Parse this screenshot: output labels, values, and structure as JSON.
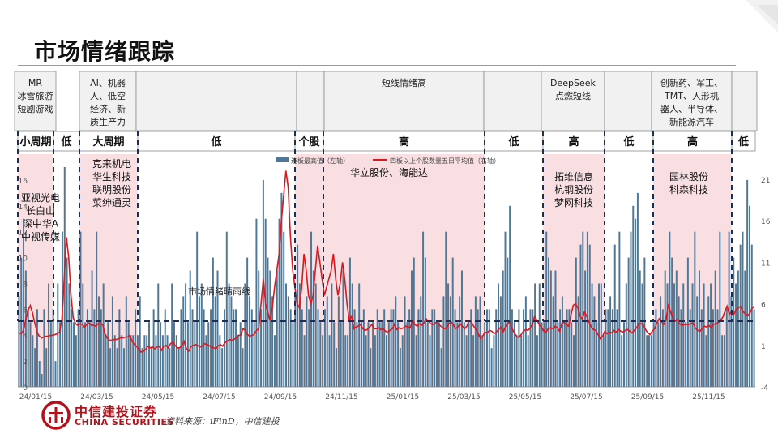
{
  "page": {
    "title": "市场情绪跟踪",
    "brand_cn": "中信建投证券",
    "brand_en": "CHINA SECURITIES",
    "source": "资料来源：iFinD，中信建投"
  },
  "colors": {
    "bar": "#4f7896",
    "line": "#e0161f",
    "pink": "#f9dfe2",
    "dashed": "#1c2e57",
    "box_fill": "#f1f1f1",
    "brand": "#b3121c"
  },
  "themes": [
    {
      "text": "MR\n冰雪旅游\n短剧游戏"
    },
    {
      "text": "AI、机器\n人、低空\n经济、新\n质生产力"
    },
    {
      "text": ""
    },
    {
      "text": ""
    },
    {
      "text": "短线情绪高"
    },
    {
      "text": ""
    },
    {
      "text": "DeepSeek\n点燃短线"
    },
    {
      "text": ""
    },
    {
      "text": "创新药、军工、\nTMT、人形机\n器人、半导体、\n新能源汽车"
    },
    {
      "text": ""
    }
  ],
  "phases": [
    {
      "label": "小周期",
      "sentiment": "high",
      "stocks": "亚视光电\n长白山\n深中华A\n中视传媒"
    },
    {
      "label": "低",
      "sentiment": "low",
      "stocks": ""
    },
    {
      "label": "大周期",
      "sentiment": "high",
      "stocks": "克来机电\n华生科技\n联明股份\n菜绅通灵"
    },
    {
      "label": "低",
      "sentiment": "low",
      "stocks": ""
    },
    {
      "label": "个股",
      "sentiment": "high",
      "stocks": ""
    },
    {
      "label": "高",
      "sentiment": "high",
      "stocks": "华立股份、海能达"
    },
    {
      "label": "低",
      "sentiment": "low",
      "stocks": ""
    },
    {
      "label": "高",
      "sentiment": "high",
      "stocks": "拓维信息\n杭钢股份\n梦网科技"
    },
    {
      "label": "低",
      "sentiment": "low",
      "stocks": ""
    },
    {
      "label": "高",
      "sentiment": "high",
      "stocks": "园林股份\n科森科技"
    },
    {
      "label": "低",
      "sentiment": "low",
      "stocks": ""
    }
  ],
  "chart_data": {
    "type": "bar",
    "x_ticks": [
      "24/01/15",
      "24/03/15",
      "24/05/15",
      "24/07/15",
      "24/09/15",
      "24/11/15",
      "25/01/15",
      "25/03/15",
      "25/05/15",
      "25/07/15",
      "25/09/15",
      "25/11/15"
    ],
    "left_axis": {
      "ticks": [
        "0",
        "2",
        "4",
        "6",
        "8",
        "10",
        "12",
        "14",
        "16"
      ],
      "range": [
        0,
        18
      ]
    },
    "right_axis": {
      "ticks": [
        "-4",
        "1",
        "6",
        "11",
        "16",
        "21"
      ],
      "range": [
        -4,
        24
      ]
    },
    "series": [
      {
        "name": "连板最高值（左轴）",
        "type": "bar",
        "axis": "left",
        "values": [
          7,
          10,
          13,
          9,
          6,
          5,
          4,
          3,
          6,
          2,
          1,
          6,
          3,
          8,
          5,
          6,
          2,
          8,
          5,
          12,
          17,
          10,
          8,
          6,
          5,
          4,
          6,
          12,
          8,
          5,
          6,
          5,
          9,
          6,
          12,
          7,
          6,
          8,
          4,
          5,
          3,
          7,
          4,
          3,
          6,
          4,
          3,
          7,
          5,
          4,
          4,
          6,
          4,
          7,
          3,
          4,
          4,
          5,
          3,
          6,
          4,
          8,
          5,
          4,
          6,
          4,
          3,
          8,
          5,
          4,
          3,
          6,
          7,
          8,
          5,
          9,
          6,
          5,
          12,
          7,
          8,
          6,
          4,
          5,
          6,
          10,
          7,
          9,
          4,
          3,
          6,
          12,
          8,
          7,
          6,
          6,
          4,
          5,
          3,
          8,
          10,
          7,
          6,
          5,
          13,
          9,
          6,
          16,
          13,
          10,
          9,
          7,
          4,
          9,
          13,
          15,
          12,
          8,
          7,
          6,
          5,
          7,
          11,
          8,
          6,
          4,
          7,
          6,
          12,
          9,
          8,
          6,
          5,
          4,
          6,
          7,
          4,
          8,
          5,
          3,
          7,
          5,
          9,
          4,
          4,
          10,
          8,
          6,
          5,
          8,
          5,
          6,
          4,
          5,
          3,
          5,
          4,
          6,
          5,
          5,
          6,
          4,
          5,
          6,
          6,
          7,
          5,
          3,
          4,
          7,
          5,
          6,
          9,
          10,
          4,
          6,
          7,
          12,
          10,
          5,
          4,
          6,
          6,
          5,
          5,
          3,
          7,
          12,
          8,
          7,
          10,
          6,
          5,
          7,
          9,
          5,
          4,
          5,
          6,
          4,
          7,
          6,
          7,
          4,
          5,
          6,
          6,
          3,
          4,
          6,
          8,
          7,
          9,
          12,
          10,
          14,
          6,
          5,
          4,
          6,
          4,
          6,
          7,
          4,
          6,
          6,
          8,
          4,
          8,
          5,
          5,
          12,
          10,
          9,
          7,
          9,
          5,
          6,
          7,
          5,
          6,
          6,
          5,
          4,
          10,
          7,
          11,
          12,
          9,
          12,
          11,
          8,
          7,
          5,
          8,
          8,
          4,
          6,
          6,
          7,
          6,
          11,
          6,
          12,
          4,
          5,
          8,
          10,
          12,
          14,
          13,
          15,
          9,
          8,
          10,
          4,
          4,
          4,
          5,
          6,
          5,
          7,
          6,
          9,
          8,
          12,
          10,
          8,
          9,
          7,
          6,
          8,
          5,
          10,
          6,
          8,
          12,
          7,
          9,
          6,
          8,
          4,
          7,
          8,
          6,
          9,
          6,
          12,
          4,
          4,
          6,
          12,
          7,
          10,
          8,
          9,
          11,
          12,
          9,
          16,
          14,
          11,
          6
        ]
      },
      {
        "name": "四板以上个股数量五日平均值（右轴）",
        "type": "line",
        "axis": "right",
        "values": [
          2.5,
          2.4,
          2.8,
          4.1,
          5.2,
          5.8,
          4.9,
          3.7,
          2.6,
          2.1,
          1.9,
          2.0,
          2.1,
          2.1,
          2.2,
          2.2,
          2.3,
          2.4,
          2.6,
          4.2,
          9.0,
          14.0,
          11.5,
          7.0,
          4.3,
          3.6,
          3.4,
          3.6,
          3.5,
          3.2,
          3.5,
          3.7,
          3.4,
          3.4,
          3.3,
          3.6,
          3.6,
          3.5,
          2.4,
          1.9,
          1.6,
          1.6,
          1.7,
          1.7,
          1.8,
          1.9,
          1.9,
          2.0,
          2.0,
          2.2,
          1.5,
          1.1,
          0.9,
          0.5,
          0.2,
          0.3,
          0.5,
          0.9,
          0.7,
          0.8,
          0.6,
          0.8,
          0.9,
          0.4,
          0.9,
          1.0,
          0.7,
          1.2,
          1.4,
          1.0,
          0.7,
          0.7,
          1.0,
          1.5,
          0.6,
          0.3,
          0.8,
          1.0,
          1.1,
          1.0,
          0.8,
          0.9,
          1.2,
          1.1,
          1.0,
          0.8,
          0.7,
          0.6,
          0.9,
          1.1,
          0.9,
          1.3,
          1.5,
          1.7,
          1.6,
          1.7,
          1.9,
          2.2,
          2.2,
          3.0,
          2.8,
          2.3,
          2.1,
          2.2,
          2.3,
          2.8,
          3.0,
          6.0,
          9.0,
          6.0,
          5.0,
          4.0,
          5.5,
          8.0,
          10.0,
          12.0,
          16.0,
          19.0,
          22.0,
          20.0,
          14.0,
          10.0,
          8.0,
          6.0,
          5.5,
          8.0,
          12.0,
          10.0,
          7.0,
          6.0,
          7.0,
          10.0,
          13.0,
          11.0,
          9.0,
          7.0,
          8.0,
          9.0,
          10.0,
          12.0,
          9.0,
          7.0,
          8.5,
          11.0,
          9.0,
          6.0,
          4.0,
          4.5,
          3.0,
          3.2,
          3.3,
          3.5,
          3.0,
          2.8,
          2.9,
          3.2,
          3.5,
          3.0,
          3.0,
          3.1,
          2.9,
          3.0,
          2.7,
          2.6,
          2.8,
          3.0,
          3.5,
          2.9,
          3.1,
          3.0,
          3.1,
          3.3,
          3.2,
          3.1,
          4.0,
          3.5,
          3.3,
          3.6,
          3.4,
          3.7,
          4.2,
          3.9,
          3.6,
          3.5,
          3.7,
          3.8,
          3.4,
          3.2,
          3.0,
          3.1,
          3.6,
          3.8,
          3.5,
          3.0,
          3.2,
          3.6,
          3.3,
          3.0,
          3.3,
          4.0,
          3.8,
          3.3,
          2.9,
          2.4,
          1.8,
          2.1,
          2.6,
          2.5,
          2.8,
          2.7,
          2.4,
          2.6,
          2.9,
          3.2,
          2.6,
          3.2,
          3.6,
          3.8,
          3.0,
          2.5,
          2.1,
          1.9,
          2.3,
          2.7,
          2.9,
          2.8,
          3.1,
          3.5,
          4.5,
          4.0,
          3.5,
          3.2,
          2.7,
          2.6,
          3.0,
          3.1,
          3.0,
          3.3,
          3.1,
          2.7,
          3.6,
          3.8,
          3.5,
          3.3,
          4.6,
          5.8,
          6.0,
          5.5,
          4.5,
          4.2,
          5.0,
          4.5,
          3.8,
          3.2,
          2.9,
          2.8,
          2.3,
          1.8,
          2.1,
          2.7,
          2.4,
          2.6,
          2.5,
          2.8,
          2.6,
          2.9,
          2.7,
          2.6,
          2.8,
          2.9,
          2.7,
          2.5,
          2.8,
          3.1,
          3.6,
          3.6,
          3.4,
          2.9,
          2.5,
          2.3,
          2.7,
          3.0,
          3.7,
          4.2,
          3.9,
          3.5,
          4.0,
          5.8,
          5.1,
          4.3,
          3.9,
          4.1,
          3.6,
          3.4,
          3.5,
          3.5,
          3.5,
          3.6,
          3.7,
          3.1,
          2.8,
          2.7,
          3.0,
          3.3,
          3.2,
          3.4,
          3.1,
          3.5,
          3.6,
          3.7,
          4.0,
          4.3,
          5.0,
          5.7,
          4.7,
          5.1,
          4.7,
          5.3,
          5.5,
          5.7,
          5.1,
          4.8,
          4.6,
          4.8,
          5.4,
          5.7
        ]
      }
    ],
    "annotations": [
      {
        "text": "市场情绪晴雨线",
        "value": 3.9,
        "axis": "right"
      }
    ]
  }
}
